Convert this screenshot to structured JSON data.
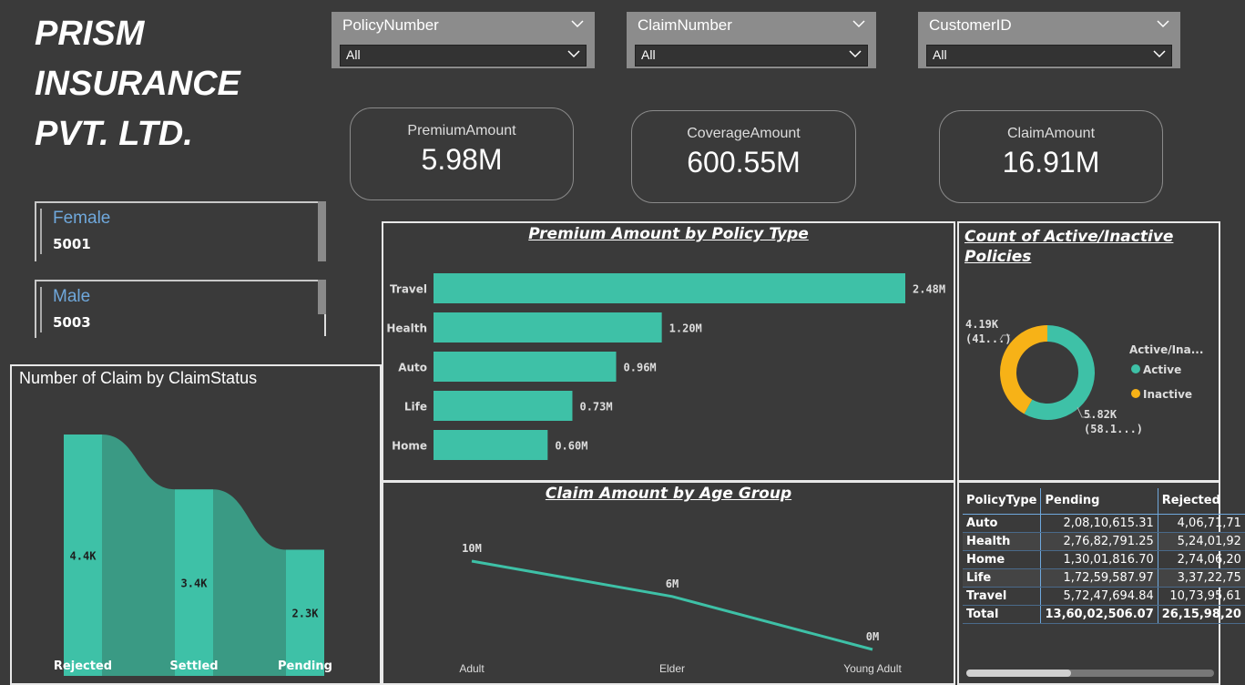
{
  "company_title": "PRISM\nINSURANCE\nPVT. LTD.",
  "slicers": [
    {
      "label": "PolicyNumber",
      "value": "All"
    },
    {
      "label": "ClaimNumber",
      "value": "All"
    },
    {
      "label": "CustomerID",
      "value": "All"
    }
  ],
  "kpis": [
    {
      "label": "PremiumAmount",
      "value": "5.98M"
    },
    {
      "label": "CoverageAmount",
      "value": "600.55M"
    },
    {
      "label": "ClaimAmount",
      "value": "16.91M"
    }
  ],
  "gender": [
    {
      "label": "Female",
      "value": "5001"
    },
    {
      "label": "Male",
      "value": "5003"
    }
  ],
  "colors": {
    "teal": "#3ec1a7",
    "orange": "#f7b217",
    "bg": "#3a3a3a"
  },
  "claim_status": {
    "title": "Number of Claim by ClaimStatus",
    "categories": [
      "Rejected",
      "Settled",
      "Pending"
    ],
    "values": [
      4400,
      3400,
      2300
    ],
    "labels": [
      "4.4K",
      "3.4K",
      "2.3K"
    ]
  },
  "premium_by_policy": {
    "title": "Premium Amount by Policy Type",
    "categories": [
      "Travel",
      "Health",
      "Auto",
      "Life",
      "Home"
    ],
    "values": [
      2.48,
      1.2,
      0.96,
      0.73,
      0.6
    ],
    "labels": [
      "2.48M",
      "1.20M",
      "0.96M",
      "0.73M",
      "0.60M"
    ]
  },
  "active_inactive": {
    "title": "Count of Active/Inactive Policies",
    "legend_title": "Active/Ina...",
    "slices": [
      {
        "name": "Active",
        "value": 5820,
        "label1": "5.82K",
        "label2": "(58.1...)"
      },
      {
        "name": "Inactive",
        "value": 4190,
        "label1": "4.19K",
        "label2": "(41...)"
      }
    ]
  },
  "claim_by_age": {
    "title": "Claim Amount by Age Group",
    "categories": [
      "Adult",
      "Elder",
      "Young Adult"
    ],
    "values": [
      10,
      6,
      0
    ],
    "labels": [
      "10M",
      "6M",
      "0M"
    ]
  },
  "table": {
    "headers": [
      "PolicyType",
      "Pending",
      "Rejected"
    ],
    "rows": [
      [
        "Auto",
        "2,08,10,615.31",
        "4,06,71,71"
      ],
      [
        "Health",
        "2,76,82,791.25",
        "5,24,01,92"
      ],
      [
        "Home",
        "1,30,01,816.70",
        "2,74,06,20"
      ],
      [
        "Life",
        "1,72,59,587.97",
        "3,37,22,75"
      ],
      [
        "Travel",
        "5,72,47,694.84",
        "10,73,95,61"
      ]
    ],
    "total": [
      "Total",
      "13,60,02,506.07",
      "26,15,98,20"
    ]
  },
  "chart_data": [
    {
      "type": "bar",
      "title": "Number of Claim by ClaimStatus",
      "categories": [
        "Rejected",
        "Settled",
        "Pending"
      ],
      "values": [
        4400,
        3400,
        2300
      ]
    },
    {
      "type": "bar",
      "title": "Premium Amount by Policy Type",
      "categories": [
        "Travel",
        "Health",
        "Auto",
        "Life",
        "Home"
      ],
      "values": [
        2.48,
        1.2,
        0.96,
        0.73,
        0.6
      ]
    },
    {
      "type": "pie",
      "title": "Count of Active/Inactive Policies",
      "categories": [
        "Active",
        "Inactive"
      ],
      "values": [
        5820,
        4190
      ]
    },
    {
      "type": "line",
      "title": "Claim Amount by Age Group",
      "categories": [
        "Adult",
        "Elder",
        "Young Adult"
      ],
      "values": [
        10,
        6,
        0
      ]
    }
  ]
}
